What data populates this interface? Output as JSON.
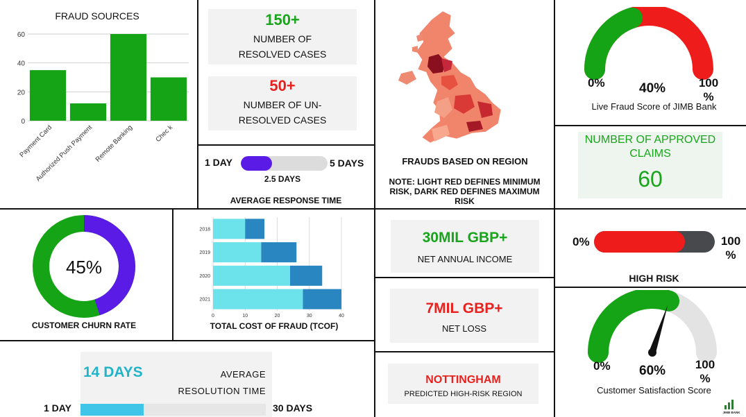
{
  "colors": {
    "green": "#15a415",
    "red": "#ef1c1c",
    "purple": "#5b1be6",
    "teal": "#20b6c9",
    "cyan_light": "#6ce3ea",
    "blue_dark": "#2a86c0",
    "gray": "#48494d"
  },
  "fraud_sources": {
    "title": "FRAUD SOURCES"
  },
  "resolved": {
    "value": "150+",
    "label": "NUMBER OF RESOLVED CASES"
  },
  "unresolved": {
    "value": "50+",
    "label": "NUMBER OF UN-RESOLVED CASES"
  },
  "response_time": {
    "min_label": "1 DAY",
    "max_label": "5 DAYS",
    "value_label": "2.5 DAYS",
    "title": "AVERAGE RESPONSE TIME",
    "fill_fraction": 0.36
  },
  "region_map": {
    "title": "FRAUDS BASED ON REGION",
    "note": "NOTE: LIGHT RED DEFINES MINIMUM RISK, DARK RED DEFINES MAXIMUM RISK"
  },
  "live_fraud": {
    "min_label": "0%",
    "value_label": "40%",
    "max_label": "100 %",
    "caption": "Live Fraud Score of JIMB Bank",
    "value": 40
  },
  "approved_claims": {
    "label": "NUMBER OF APPROVED CLAIMS",
    "value": "60"
  },
  "churn": {
    "value_label": "45%",
    "title": "CUSTOMER CHURN RATE",
    "value": 45
  },
  "tcof": {
    "title": "TOTAL COST OF FRAUD (TCOF)"
  },
  "income": {
    "value": "30MIL GBP+",
    "label": "NET ANNUAL INCOME"
  },
  "loss": {
    "value": "7MIL GBP+",
    "label": "NET LOSS"
  },
  "high_risk": {
    "min_label": "0%",
    "max_label": "100 %",
    "title": "HIGH RISK",
    "fill_fraction": 0.75
  },
  "resolution": {
    "value": "14 DAYS",
    "label": "AVERAGE RESOLUTION TIME",
    "min_label": "1 DAY",
    "max_label": "30 DAYS",
    "fill_fraction": 0.34
  },
  "predicted_region": {
    "value": "NOTTINGHAM",
    "label": "PREDICTED HIGH-RISK REGION"
  },
  "satisfaction": {
    "min_label": "0%",
    "value_label": "60%",
    "max_label": "100 %",
    "caption": "Customer Satisfaction Score",
    "value": 60
  },
  "logo": {
    "text": "JIMB BANK"
  },
  "chart_data": [
    {
      "type": "bar",
      "title": "FRAUD SOURCES",
      "categories": [
        "Payment Card",
        "Authorized Push Payment",
        "Remote Banking",
        "Check"
      ],
      "tick_labels": [
        "Payment Card",
        "Authorized Push Payment",
        "Remote Banking",
        "Chec k"
      ],
      "values": [
        35,
        12,
        60,
        30
      ],
      "ylim": [
        0,
        60
      ],
      "yticks": [
        0,
        20,
        40,
        60
      ],
      "grid": true,
      "color": "#15a415"
    },
    {
      "type": "bar",
      "orientation": "horizontal",
      "stacked": true,
      "title": "TOTAL COST OF FRAUD (TCOF)",
      "categories": [
        "2018",
        "2019",
        "2020",
        "2021"
      ],
      "series": [
        {
          "values": [
            10,
            15,
            24,
            28
          ],
          "color": "#6ce3ea"
        },
        {
          "values": [
            6,
            11,
            10,
            12
          ],
          "color": "#2a86c0"
        }
      ],
      "xlim": [
        0,
        40
      ],
      "xticks": [
        0,
        10,
        20,
        30,
        40
      ],
      "grid": true
    }
  ]
}
